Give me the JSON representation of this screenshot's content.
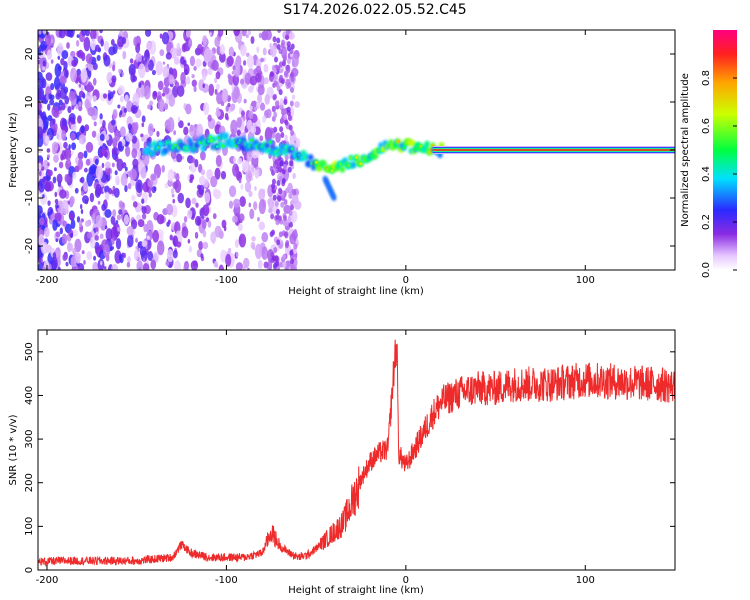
{
  "title": "S174.2026.022.05.52.C45",
  "colors": {
    "snr_line": "#ee2a2a",
    "axis": "#000000",
    "background": "#ffffff"
  },
  "chart_data": [
    {
      "type": "heatmap",
      "title": "S174.2026.022.05.52.C45",
      "xlabel": "Height of straight line (km)",
      "ylabel": "Frequency (Hz)",
      "xlim": [
        -205,
        150
      ],
      "ylim": [
        -25,
        25
      ],
      "xticks": [
        -200,
        -100,
        0,
        100
      ],
      "yticks": [
        -20,
        -10,
        0,
        10,
        20
      ],
      "colorbar": {
        "label": "Normalized spectral amplitude",
        "range": [
          0,
          1
        ],
        "ticks": [
          0.0,
          0.2,
          0.4,
          0.6,
          0.8
        ],
        "colormap": "rainbow (violet-blue-cyan-green-yellow-red)"
      },
      "features": [
        {
          "name": "noise scatter",
          "x_range": [
            -205,
            -60
          ],
          "freq_range": [
            -25,
            25
          ]
        },
        {
          "name": "signal track",
          "points": [
            [
              -145,
              0
            ],
            [
              -120,
              1
            ],
            [
              -100,
              2
            ],
            [
              -80,
              1
            ],
            [
              -60,
              -1
            ],
            [
              -45,
              -4
            ],
            [
              -35,
              -3
            ],
            [
              -25,
              -2
            ],
            [
              -15,
              0
            ],
            [
              -5,
              1
            ],
            [
              10,
              0.3
            ],
            [
              20,
              0
            ],
            [
              150,
              0
            ]
          ]
        },
        {
          "name": "signal branch",
          "points": [
            [
              -45,
              -6
            ],
            [
              -40,
              -10
            ]
          ]
        }
      ]
    },
    {
      "type": "line",
      "xlabel": "Height of straight line (km)",
      "ylabel": "SNR (10 * v/v)",
      "xlim": [
        -205,
        150
      ],
      "ylim": [
        0,
        550
      ],
      "xticks": [
        -200,
        -100,
        0,
        100
      ],
      "yticks": [
        0,
        100,
        200,
        300,
        400,
        500
      ],
      "series": [
        {
          "name": "SNR",
          "x": [
            -205,
            -190,
            -170,
            -150,
            -130,
            -125,
            -120,
            -110,
            -100,
            -90,
            -80,
            -75,
            -70,
            -65,
            -60,
            -55,
            -50,
            -45,
            -40,
            -35,
            -30,
            -25,
            -20,
            -15,
            -10,
            -6,
            -5,
            -4,
            0,
            5,
            10,
            15,
            20,
            30,
            40,
            50,
            60,
            80,
            100,
            120,
            140,
            150
          ],
          "values": [
            20,
            22,
            22,
            22,
            30,
            60,
            40,
            30,
            30,
            30,
            40,
            90,
            55,
            40,
            30,
            35,
            50,
            70,
            90,
            110,
            160,
            210,
            250,
            270,
            280,
            500,
            520,
            270,
            240,
            280,
            320,
            360,
            390,
            410,
            420,
            420,
            430,
            430,
            440,
            435,
            430,
            425
          ]
        }
      ]
    }
  ]
}
